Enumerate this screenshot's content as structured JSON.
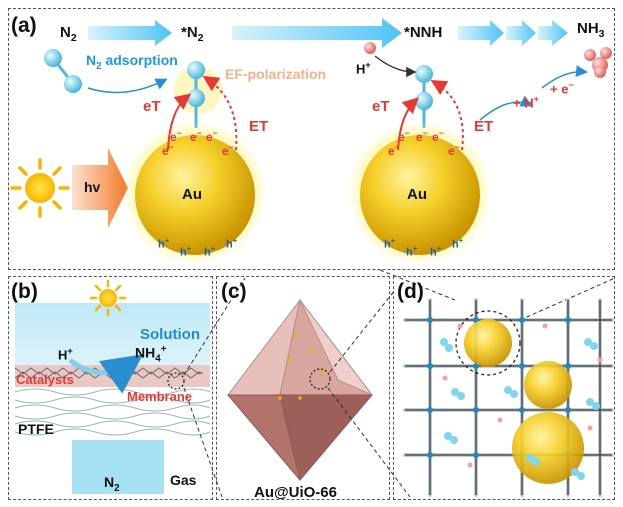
{
  "panel_a": {
    "label": "(a)",
    "stages": [
      "N",
      "2",
      "*N",
      "2",
      "*NNH",
      "NH",
      "3"
    ],
    "n2_adsorption": [
      "N",
      "2",
      " adsorption"
    ],
    "ef_polarization": "EF-polarization",
    "hv": "hv",
    "au": "Au",
    "et_label": "eT",
    "ET_label": "ET",
    "electron": "e",
    "hole": "h",
    "proton": "H",
    "plus_h": "+ H",
    "plus_e": "+ e"
  },
  "panel_b": {
    "label": "(b)",
    "solution": "Solution",
    "h_plus": "H",
    "nh4": [
      "NH",
      "4",
      "+"
    ],
    "catalysts": "Catalysts",
    "membrane": "Membrane",
    "ptfe": "PTFE",
    "n2": [
      "N",
      "2"
    ],
    "gas": "Gas"
  },
  "panel_c": {
    "label": "(c)",
    "caption": "Au@UiO-66"
  },
  "panel_d": {
    "label": "(d)"
  },
  "colors": {
    "arrow_blue": "#4fc3f7",
    "gold": "#f2c21b",
    "red": "#e53935",
    "cyan_molecule": "#7fd6f0",
    "octahedron": "#d8a9a4"
  }
}
